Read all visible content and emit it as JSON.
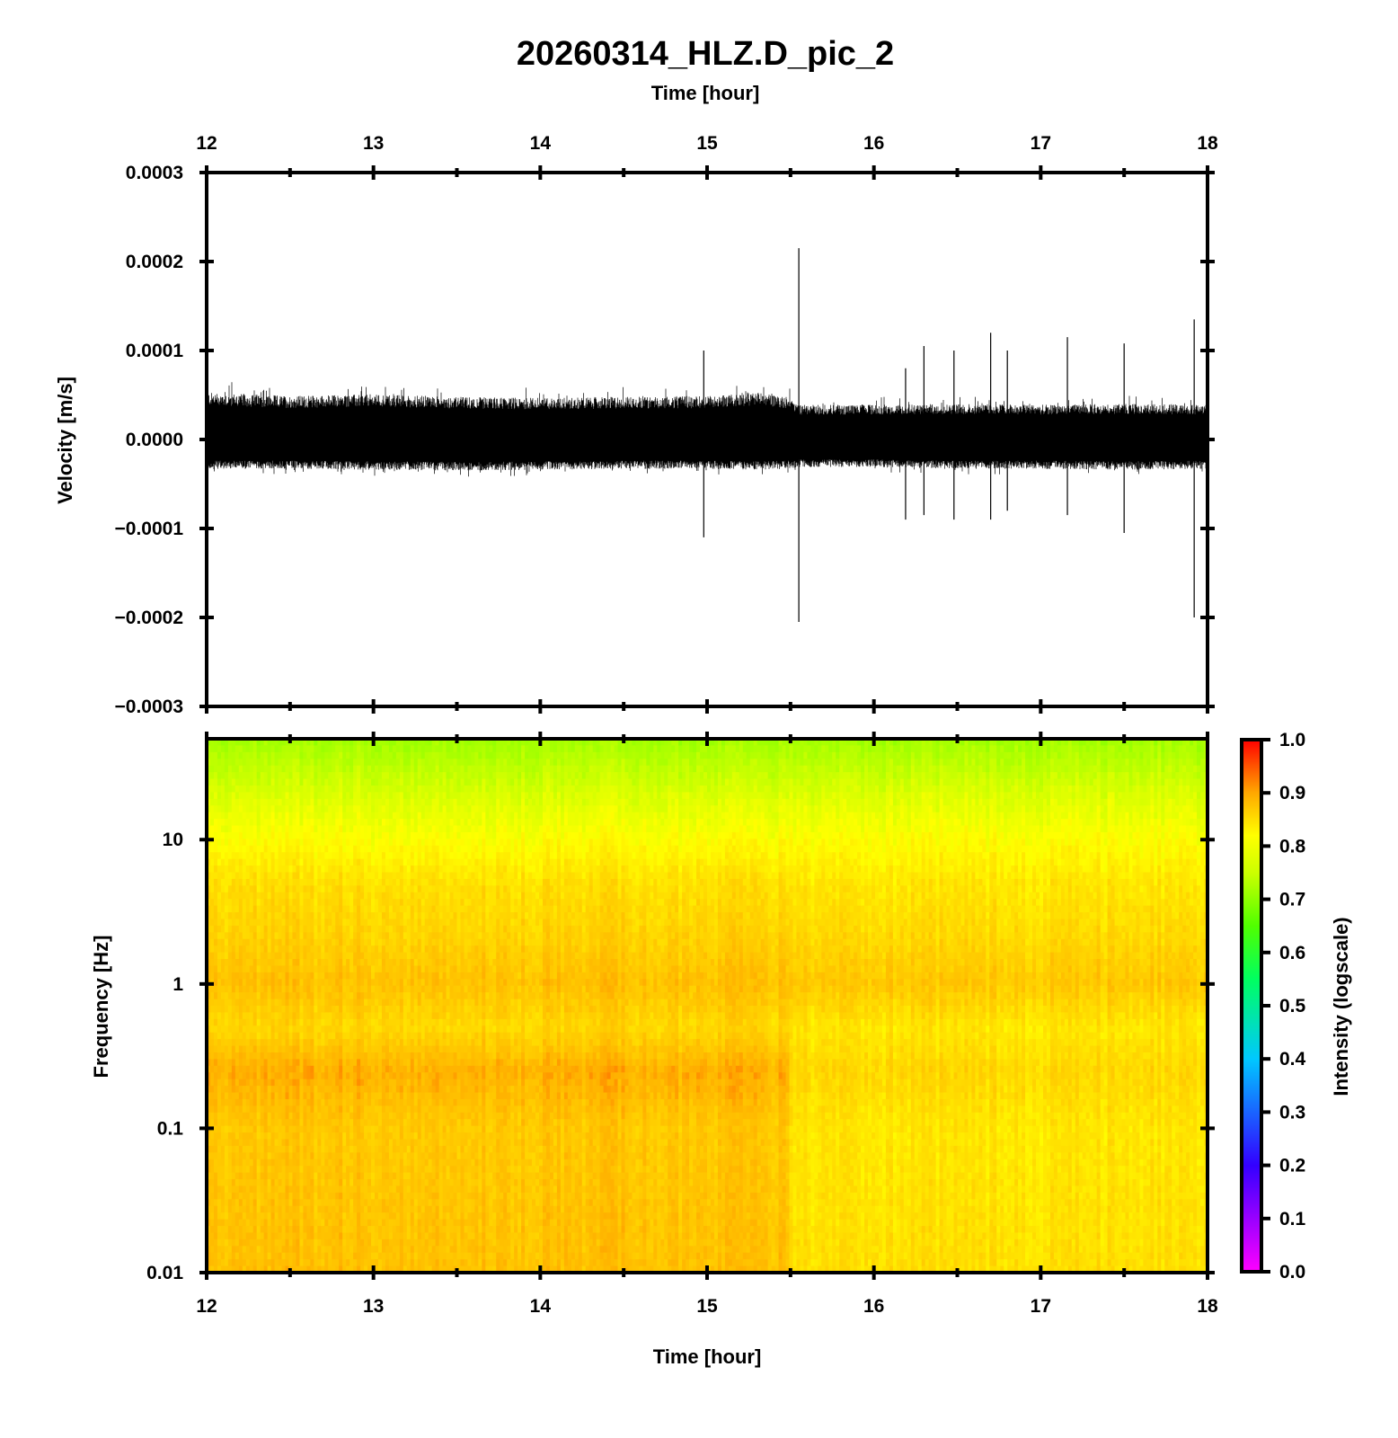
{
  "title": "20260314_HLZ.D_pic_2",
  "colors": {
    "axis": "#000000",
    "trace": "#000000",
    "background": "#ffffff",
    "colormap": [
      "#ff00ff",
      "#3300ff",
      "#00a0ff",
      "#00ff80",
      "#80ff00",
      "#ffff00",
      "#ffb000",
      "#ff0000"
    ]
  },
  "chart_data": [
    {
      "type": "line",
      "panel": "waveform",
      "top_xlabel": "Time [hour]",
      "ylabel": "Velocity [m/s]",
      "xlim": [
        12,
        18
      ],
      "ylim": [
        -0.0003,
        0.0003
      ],
      "x_ticks": [
        "12",
        "13",
        "14",
        "15",
        "16",
        "17",
        "18"
      ],
      "y_ticks": [
        "0.0003",
        "0.0002",
        "0.0001",
        "0.0000",
        "−0.0001",
        "−0.0002",
        "−0.0003"
      ],
      "y_tick_values": [
        0.0003,
        0.0002,
        0.0001,
        0.0,
        -0.0001,
        -0.0002,
        -0.0003
      ],
      "series": [
        {
          "envelope_x": [
            12.0,
            12.5,
            13.0,
            13.5,
            14.0,
            14.5,
            15.0,
            15.3,
            15.5,
            15.55,
            16.0,
            16.5,
            17.0,
            17.5,
            18.0
          ],
          "envelope_upper": [
            5.3e-05,
            4.9e-05,
            5.1e-05,
            4.8e-05,
            4.7e-05,
            4.8e-05,
            4.9e-05,
            5.3e-05,
            4.8e-05,
            3.9e-05,
            3.9e-05,
            4e-05,
            3.9e-05,
            4e-05,
            3.9e-05
          ],
          "envelope_lower": [
            -3.3e-05,
            -3.3e-05,
            -3.4e-05,
            -3.5e-05,
            -3.4e-05,
            -3.3e-05,
            -3.3e-05,
            -3.4e-05,
            -3.3e-05,
            -3.1e-05,
            -3.1e-05,
            -3.3e-05,
            -3.3e-05,
            -3.4e-05,
            -3.3e-05
          ]
        }
      ],
      "spikes": [
        {
          "x": 14.98,
          "max": 0.0001,
          "min": -0.00011
        },
        {
          "x": 15.55,
          "max": 0.000215,
          "min": -0.000205
        },
        {
          "x": 16.19,
          "max": 8e-05,
          "min": -9e-05
        },
        {
          "x": 16.3,
          "max": 0.000105,
          "min": -8.5e-05
        },
        {
          "x": 16.48,
          "max": 0.0001,
          "min": -9e-05
        },
        {
          "x": 16.7,
          "max": 0.00012,
          "min": -9e-05
        },
        {
          "x": 16.8,
          "max": 0.0001,
          "min": -8e-05
        },
        {
          "x": 17.16,
          "max": 0.000115,
          "min": -8.5e-05
        },
        {
          "x": 17.5,
          "max": 0.000108,
          "min": -0.000105
        },
        {
          "x": 17.92,
          "max": 0.000135,
          "min": -0.0002
        }
      ]
    },
    {
      "type": "heatmap",
      "panel": "spectrogram",
      "xlabel": "Time [hour]",
      "ylabel": "Frequency [Hz]",
      "xlim": [
        12,
        18
      ],
      "ylim": [
        0.01,
        50
      ],
      "yscale": "log",
      "x_ticks": [
        "12",
        "13",
        "14",
        "15",
        "16",
        "17",
        "18"
      ],
      "y_ticks": [
        "10",
        "1",
        "0.1",
        "0.01"
      ],
      "y_tick_values": [
        10,
        1,
        0.1,
        0.01
      ],
      "intensity_profile": {
        "frequency": [
          0.01,
          0.1,
          0.25,
          0.5,
          1,
          2,
          5,
          10,
          20,
          50
        ],
        "before_15_5h": [
          0.88,
          0.87,
          0.9,
          0.85,
          0.88,
          0.86,
          0.84,
          0.8,
          0.76,
          0.69
        ],
        "after_15_5h": [
          0.84,
          0.83,
          0.85,
          0.83,
          0.87,
          0.85,
          0.83,
          0.8,
          0.76,
          0.69
        ]
      },
      "colorbar": {
        "label": "Intensity (logscale)",
        "range": [
          0.0,
          1.0
        ],
        "ticks": [
          "1.0",
          "0.9",
          "0.8",
          "0.7",
          "0.6",
          "0.5",
          "0.4",
          "0.3",
          "0.2",
          "0.1",
          "0.0"
        ],
        "tick_values": [
          1.0,
          0.9,
          0.8,
          0.7,
          0.6,
          0.5,
          0.4,
          0.3,
          0.2,
          0.1,
          0.0
        ]
      }
    }
  ]
}
